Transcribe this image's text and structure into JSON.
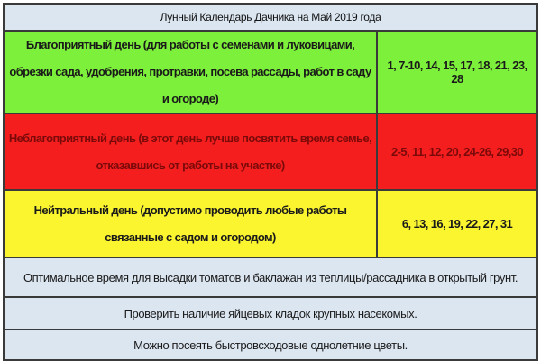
{
  "title": "Лунный Календарь Дачника на Май 2019 года",
  "rows": [
    {
      "type": "favorable",
      "description": "Благоприятный день (для работы с семенами и луковицами, обрезки сада, удобрения, протравки,  посева рассады, работ в саду и огороде)",
      "days": "1, 7-10, 14, 15, 17, 18, 21, 23, 28",
      "color": "#7cf03a"
    },
    {
      "type": "unfavorable",
      "description": "Неблагоприятный день (в этот день лучше посвятить время семье, отказавшись от работы на участке)",
      "days": "2-5, 11, 12, 20, 24-26, 29,30",
      "color": "#f51e1e"
    },
    {
      "type": "neutral",
      "description": "Нейтральный день (допустимо проводить любые работы связанные с садом и огородом)",
      "days": "6, 13, 16, 19, 22, 27, 31",
      "color": "#fbf530"
    }
  ],
  "notes": [
    "Оптимальное время для высадки томатов и баклажан из теплицы/рассадника в открытый грунт.",
    "Проверить наличие яйцевых кладок крупных насекомых.",
    "Можно посеять быстровсходовые однолетние цветы."
  ]
}
